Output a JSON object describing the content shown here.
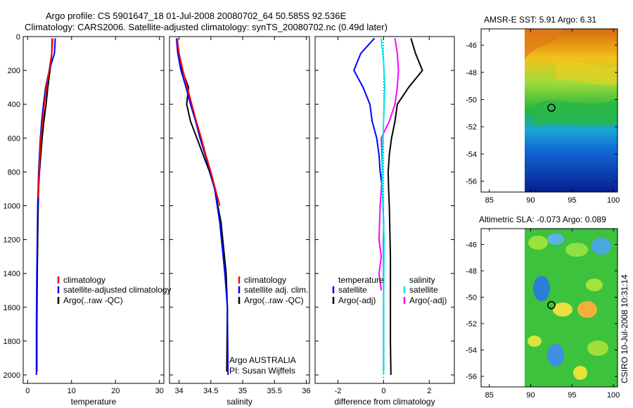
{
  "title": {
    "line1": "Argo profile: CS 5901647_18 01-Jul-2008 20080702_64 50.585S 92.536E",
    "line2": "Climatology: CARS2006. Satellite-adjusted climatology: synTS_20080702.nc (0.49d later)"
  },
  "colors": {
    "climatology": "#ff0000",
    "satellite": "#0000ff",
    "argo": "#000000",
    "cyan": "#00e5e5",
    "magenta": "#ff00ff"
  },
  "chart_data": [
    {
      "type": "line",
      "id": "temperature",
      "xlabel": "temperature",
      "ylabel": "",
      "xlim": [
        -1,
        31
      ],
      "ylim": [
        2050,
        0
      ],
      "y_reversed": true,
      "xticks": [
        0,
        10,
        20,
        30
      ],
      "yticks": [
        0,
        200,
        400,
        600,
        800,
        1000,
        1200,
        1400,
        1600,
        1800,
        2000
      ],
      "legend": [
        "climatology",
        "satellite-adjusted climatology",
        "Argo(..raw -QC)"
      ],
      "series": [
        {
          "name": "Argo(..raw -QC)",
          "color": "#000000",
          "x": [
            5.6,
            5.5,
            5.1,
            4.6,
            4.2,
            3.7,
            3.3,
            3.0,
            2.7,
            2.5,
            2.4,
            2.3,
            2.2,
            2.1,
            2.1
          ],
          "y": [
            10,
            100,
            200,
            300,
            400,
            500,
            600,
            700,
            800,
            900,
            1000,
            1200,
            1400,
            1700,
            1980
          ]
        },
        {
          "name": "satellite-adjusted climatology",
          "color": "#0000ff",
          "x": [
            6.3,
            6.1,
            4.9,
            4.1,
            3.6,
            3.2,
            2.9,
            2.7,
            2.5,
            2.4,
            2.3,
            2.2,
            2.1,
            2.0,
            2.0
          ],
          "y": [
            10,
            100,
            200,
            300,
            400,
            500,
            600,
            700,
            800,
            900,
            1000,
            1200,
            1400,
            1700,
            2000
          ]
        },
        {
          "name": "climatology",
          "color": "#ff0000",
          "x": [
            5.7,
            5.5,
            4.9,
            4.3,
            3.8,
            3.4,
            3.0,
            2.8,
            2.6,
            2.5,
            2.4
          ],
          "y": [
            10,
            100,
            200,
            300,
            400,
            500,
            600,
            700,
            800,
            900,
            950
          ]
        }
      ]
    },
    {
      "type": "line",
      "id": "salinity",
      "xlabel": "salinity",
      "ylabel": "",
      "xlim": [
        33.85,
        36.05
      ],
      "ylim": [
        2050,
        0
      ],
      "y_reversed": true,
      "xticks": [
        34,
        34.5,
        35,
        35.5,
        36
      ],
      "xticklabels": [
        "34",
        "34.5",
        "35",
        "35.5",
        "36"
      ],
      "legend": [
        "climatology",
        "satellite adj. clim.",
        "Argo(..raw -QC)"
      ],
      "annotation": [
        "Argo AUSTRALIA",
        "PI: Susan Wijffels"
      ],
      "series": [
        {
          "name": "Argo(..raw -QC)",
          "color": "#000000",
          "x": [
            33.97,
            33.99,
            34.05,
            34.15,
            34.12,
            34.18,
            34.28,
            34.38,
            34.48,
            34.56,
            34.66,
            34.74,
            34.76,
            34.75
          ],
          "y": [
            10,
            100,
            200,
            300,
            400,
            500,
            600,
            700,
            800,
            900,
            1100,
            1400,
            1600,
            1980
          ]
        },
        {
          "name": "satellite adj. clim.",
          "color": "#0000ff",
          "x": [
            33.96,
            33.98,
            34.03,
            34.11,
            34.18,
            34.26,
            34.33,
            34.41,
            34.49,
            34.56,
            34.64,
            34.72,
            34.76,
            34.77
          ],
          "y": [
            10,
            100,
            200,
            300,
            400,
            500,
            600,
            700,
            800,
            900,
            1100,
            1400,
            1600,
            2000
          ]
        },
        {
          "name": "climatology",
          "color": "#ff0000",
          "x": [
            33.97,
            34.0,
            34.06,
            34.13,
            34.2,
            34.27,
            34.35,
            34.42,
            34.5,
            34.57,
            34.64
          ],
          "y": [
            10,
            100,
            200,
            300,
            400,
            500,
            600,
            700,
            800,
            900,
            1000
          ]
        }
      ]
    },
    {
      "type": "line",
      "id": "difference",
      "xlabel": "difference from climatology",
      "ylabel": "",
      "xlim": [
        -3,
        3.1
      ],
      "ylim": [
        2050,
        0
      ],
      "y_reversed": true,
      "xticks": [
        -2,
        0,
        2
      ],
      "legend_left_title": "temperature",
      "legend_right_title": "salinity",
      "legend": [
        "satellite",
        "Argo(-adj)",
        "satellite",
        "Argo(-adj)"
      ],
      "series": [
        {
          "name": "temperature Argo(-adj)",
          "color": "#000000",
          "x": [
            1.2,
            1.4,
            1.7,
            1.1,
            0.6,
            0.5,
            0.35,
            0.25,
            0.2,
            0.22,
            0.25,
            0.3,
            0.3,
            0.3,
            0.32
          ],
          "y": [
            10,
            100,
            200,
            300,
            400,
            500,
            600,
            700,
            800,
            900,
            1000,
            1300,
            1600,
            1800,
            2000
          ]
        },
        {
          "name": "temperature satellite",
          "color": "#0000ff",
          "x": [
            -0.4,
            -1.0,
            -1.3,
            -0.9,
            -0.6,
            -0.5,
            -0.3,
            -0.2,
            -0.15,
            -0.05,
            0.0,
            0.0,
            0.0
          ],
          "y": [
            10,
            100,
            200,
            300,
            400,
            500,
            600,
            700,
            800,
            900,
            1100,
            1500,
            1980
          ]
        },
        {
          "name": "salinity Argo(-adj)",
          "color": "#ff00ff",
          "x": [
            0.5,
            0.6,
            0.65,
            0.6,
            0.5,
            0.25,
            -0.1,
            -0.05,
            -0.15,
            -0.2,
            -0.1,
            -0.2,
            -0.1
          ],
          "y": [
            10,
            100,
            200,
            300,
            400,
            500,
            600,
            800,
            1000,
            1200,
            1300,
            1400,
            1500
          ]
        },
        {
          "name": "salinity satellite",
          "color": "#00e5e5",
          "x": [
            -0.1,
            0.0,
            0.05,
            0.0,
            -0.05,
            -0.05,
            0.02,
            0.0,
            0.0
          ],
          "y": [
            10,
            150,
            300,
            500,
            700,
            900,
            1200,
            1600,
            2000
          ]
        }
      ]
    },
    {
      "type": "heatmap",
      "id": "sst-map",
      "title": "AMSR-E SST: 5.91  Argo: 6.31",
      "xlim": [
        84,
        100.5
      ],
      "ylim": [
        -56.8,
        -44.8
      ],
      "xticks": [
        85,
        90,
        95,
        100
      ],
      "yticks": [
        -46,
        -48,
        -50,
        -52,
        -54,
        -56
      ],
      "marker": {
        "lon": 92.5,
        "lat": -50.6
      }
    },
    {
      "type": "heatmap",
      "id": "sla-map",
      "title": "Altimetric SLA: -0.073  Argo: 0.089",
      "xlim": [
        84,
        100.5
      ],
      "ylim": [
        -56.8,
        -44.8
      ],
      "xticks": [
        85,
        90,
        95,
        100
      ],
      "yticks": [
        -46,
        -48,
        -50,
        -52,
        -54,
        -56
      ],
      "marker": {
        "lon": 92.5,
        "lat": -50.6
      }
    }
  ],
  "footer": "CSIRO 10-Jul-2008 10:31:14"
}
